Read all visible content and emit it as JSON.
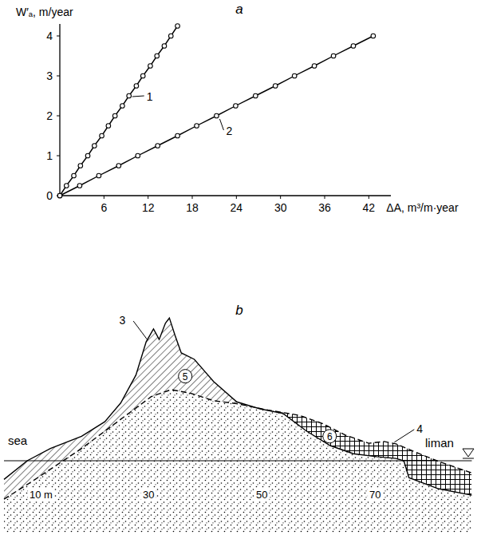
{
  "chart_data": {
    "type": "line",
    "title": "a",
    "x_label": "ΔA, m³/m·year",
    "y_label": "W′ₐ, m/year",
    "xlim": [
      0,
      45
    ],
    "ylim": [
      0,
      4.3
    ],
    "xticks": [
      6,
      12,
      18,
      24,
      30,
      36,
      42
    ],
    "yticks": [
      0,
      1,
      2,
      3,
      4
    ],
    "grid": false,
    "marker": "circle",
    "line_style": "solid",
    "series": [
      {
        "name": "1",
        "color": "#000000",
        "x": [
          0,
          0.9,
          1.9,
          2.8,
          3.8,
          4.7,
          5.7,
          6.6,
          7.5,
          8.5,
          9.4,
          10.4,
          11.3,
          12.3,
          13.2,
          14.2,
          15.1,
          16.0
        ],
        "values": [
          0,
          0.25,
          0.5,
          0.75,
          1.0,
          1.25,
          1.5,
          1.75,
          2.0,
          2.25,
          2.5,
          2.75,
          3.0,
          3.25,
          3.5,
          3.75,
          4.0,
          4.25
        ]
      },
      {
        "name": "2",
        "color": "#000000",
        "x": [
          0,
          2.7,
          5.3,
          8.0,
          10.6,
          13.3,
          16.0,
          18.6,
          21.3,
          23.9,
          26.6,
          29.3,
          31.9,
          34.6,
          37.2,
          39.9,
          42.6
        ],
        "values": [
          0,
          0.25,
          0.5,
          0.75,
          1.0,
          1.25,
          1.5,
          1.75,
          2.0,
          2.25,
          2.5,
          2.75,
          3.0,
          3.25,
          3.5,
          3.75,
          4.0
        ]
      }
    ]
  },
  "section": {
    "title": "b",
    "left_label": "sea",
    "right_label": "liman",
    "distance_ticks": [
      {
        "value": 10,
        "label": "10 m"
      },
      30,
      50,
      70
    ],
    "profiles": [
      {
        "label": "3",
        "line_style": "solid",
        "x": [
          4.5,
          8.6,
          12.7,
          18.2,
          22.3,
          25.1,
          27.8,
          29.6,
          30.9,
          31.9,
          33.0,
          33.7,
          34.7,
          35.8,
          38.1,
          41.5,
          45.6,
          49.7,
          53.8,
          57.9,
          62.1,
          66.2,
          70.3,
          73.7,
          75.1,
          76.0,
          81.2,
          87.1
        ],
        "elevation": [
          -3.2,
          0,
          2.1,
          4.2,
          6.7,
          9.9,
          14.7,
          20.4,
          22.6,
          20.8,
          23.6,
          24.5,
          21.5,
          18.5,
          17.4,
          13.6,
          10.1,
          8.9,
          8.1,
          5.1,
          2.6,
          1.2,
          0.7,
          0.4,
          0,
          -2.9,
          -4.8,
          -5.9
        ]
      },
      {
        "label": "4",
        "line_style": "dashed",
        "x": [
          4.5,
          10,
          18.2,
          25.1,
          30.5,
          34.0,
          37.4,
          41.5,
          45.6,
          51.1,
          56.6,
          60.7,
          64.8,
          68.9,
          71.6,
          73.7,
          77.1,
          81.2,
          87.1
        ],
        "elevation": [
          -6.6,
          -3.2,
          2.1,
          7.1,
          11.0,
          12.2,
          11.6,
          10.3,
          9.8,
          8.7,
          7.8,
          6.4,
          4.4,
          3.0,
          3.3,
          2.9,
          1.5,
          -0.1,
          -2.1
        ]
      }
    ],
    "zones": [
      {
        "label": "5",
        "fill": "hatch"
      },
      {
        "label": "6",
        "fill": "crosshatch"
      }
    ]
  }
}
